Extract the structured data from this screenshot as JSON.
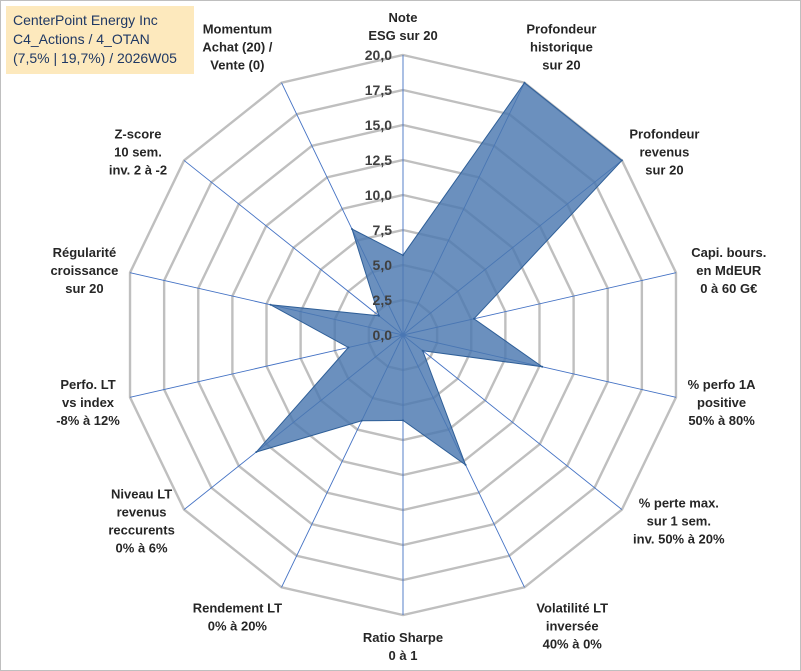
{
  "title": {
    "line1": "CenterPoint Energy Inc",
    "line2": "C4_Actions / 4_OTAN",
    "line3": "(7,5% | 19,7%) / 2026W05"
  },
  "colors": {
    "fill": "#4a78b0",
    "stroke": "#2f5f98",
    "grid": "#bfbfbf",
    "spoke": "#4472c4",
    "title_bg": "#fde9bd"
  },
  "chart_data": {
    "type": "radar",
    "rmin": 0,
    "rmax": 20,
    "ticks": [
      "0,0",
      "2,5",
      "5,0",
      "7,5",
      "10,0",
      "12,5",
      "15,0",
      "17,5",
      "20,0"
    ],
    "tick_values": [
      0,
      2.5,
      5,
      7.5,
      10,
      12.5,
      15,
      17.5,
      20
    ],
    "axes": [
      {
        "label": [
          "Note",
          "ESG sur 20"
        ],
        "value": 5.7
      },
      {
        "label": [
          "Profondeur",
          "historique",
          "sur 20"
        ],
        "value": 20
      },
      {
        "label": [
          "Profondeur",
          "revenus",
          "sur 20"
        ],
        "value": 20
      },
      {
        "label": [
          "Capi. bours.",
          "en MdEUR",
          "0 à 60 G€"
        ],
        "value": 5.2
      },
      {
        "label": [
          "% perfo 1A",
          "positive",
          "50% à 80%"
        ],
        "value": 10.2
      },
      {
        "label": [
          "% perte max.",
          "sur 1 sem.",
          "inv. 50% à 20%"
        ],
        "value": 1.8
      },
      {
        "label": [
          "Volatilité LT",
          "inversée",
          "40% à 0%"
        ],
        "value": 10.3
      },
      {
        "label": [
          "Ratio Sharpe",
          "0 à 1"
        ],
        "value": 6.1
      },
      {
        "label": [
          "Rendement LT",
          "0% à 20%"
        ],
        "value": 6.8
      },
      {
        "label": [
          "Niveau LT",
          "revenus",
          "reccurents",
          "0% à 6%"
        ],
        "value": 13.4
      },
      {
        "label": [
          "Perfo. LT",
          "vs index",
          "-8% à 12%"
        ],
        "value": 4.0
      },
      {
        "label": [
          "Régularité",
          "croissance",
          "sur 20"
        ],
        "value": 9.7
      },
      {
        "label": [
          "Z-score",
          "10 sem.",
          "inv. 2 à -2"
        ],
        "value": 2.2
      },
      {
        "label": [
          "Momentum",
          "Achat (20) /",
          "Vente (0)"
        ],
        "value": 8.4
      }
    ]
  }
}
